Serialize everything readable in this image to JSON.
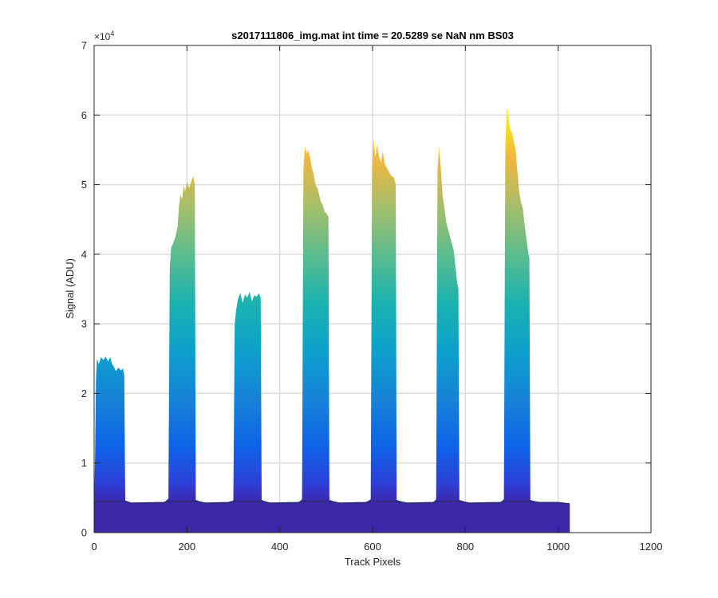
{
  "chart_data": {
    "type": "area",
    "title": "s2017111806_img.mat int time = 20.5289 se  NaN nm BS03",
    "xlabel": "Track Pixels",
    "ylabel": "Signal (ADU)",
    "xlim": [
      0,
      1200
    ],
    "ylim": [
      0,
      70000
    ],
    "xticks": [
      0,
      200,
      400,
      600,
      800,
      1000,
      1200
    ],
    "xtick_labels": [
      "0",
      "200",
      "400",
      "600",
      "800",
      "1000",
      "1200"
    ],
    "yticks": [
      0,
      10000,
      20000,
      30000,
      40000,
      50000,
      60000,
      70000
    ],
    "ytick_labels": [
      "0",
      "1",
      "2",
      "3",
      "4",
      "5",
      "6",
      "7"
    ],
    "y_exponent_label": "×10",
    "y_exponent_power": "4",
    "grid": true,
    "baseline": 4200,
    "colormap_low": "#3e26a8",
    "colormap_high": "#f9fb0e",
    "outline": [
      [
        0,
        4200
      ],
      [
        2,
        11000
      ],
      [
        4,
        22000
      ],
      [
        6,
        25000
      ],
      [
        10,
        24200
      ],
      [
        15,
        25200
      ],
      [
        20,
        24800
      ],
      [
        25,
        25300
      ],
      [
        30,
        24600
      ],
      [
        35,
        25200
      ],
      [
        38,
        24300
      ],
      [
        42,
        23900
      ],
      [
        47,
        23200
      ],
      [
        52,
        23700
      ],
      [
        58,
        23300
      ],
      [
        62,
        23600
      ],
      [
        65,
        22500
      ],
      [
        67,
        4500
      ],
      [
        80,
        4200
      ],
      [
        150,
        4300
      ],
      [
        160,
        4900
      ],
      [
        163,
        38000
      ],
      [
        166,
        41000
      ],
      [
        170,
        41500
      ],
      [
        175,
        42500
      ],
      [
        180,
        44000
      ],
      [
        183,
        47000
      ],
      [
        186,
        48500
      ],
      [
        190,
        48000
      ],
      [
        193,
        50000
      ],
      [
        196,
        49000
      ],
      [
        200,
        50400
      ],
      [
        205,
        49500
      ],
      [
        210,
        50600
      ],
      [
        214,
        51200
      ],
      [
        217,
        50000
      ],
      [
        219,
        4700
      ],
      [
        240,
        4200
      ],
      [
        290,
        4300
      ],
      [
        300,
        4600
      ],
      [
        303,
        30000
      ],
      [
        306,
        32000
      ],
      [
        310,
        33500
      ],
      [
        315,
        34500
      ],
      [
        320,
        33000
      ],
      [
        325,
        34200
      ],
      [
        330,
        33800
      ],
      [
        335,
        34600
      ],
      [
        340,
        33200
      ],
      [
        345,
        34100
      ],
      [
        350,
        33900
      ],
      [
        355,
        34400
      ],
      [
        359,
        33700
      ],
      [
        361,
        4700
      ],
      [
        380,
        4200
      ],
      [
        440,
        4300
      ],
      [
        448,
        4800
      ],
      [
        451,
        52000
      ],
      [
        454,
        55500
      ],
      [
        458,
        54500
      ],
      [
        461,
        55000
      ],
      [
        465,
        54000
      ],
      [
        469,
        52500
      ],
      [
        473,
        51500
      ],
      [
        477,
        50000
      ],
      [
        481,
        49500
      ],
      [
        485,
        48500
      ],
      [
        489,
        47500
      ],
      [
        493,
        47000
      ],
      [
        497,
        46000
      ],
      [
        500,
        46000
      ],
      [
        503,
        45500
      ],
      [
        505,
        45500
      ],
      [
        507,
        4700
      ],
      [
        530,
        4200
      ],
      [
        585,
        4300
      ],
      [
        596,
        4800
      ],
      [
        599,
        52500
      ],
      [
        602,
        56500
      ],
      [
        606,
        54000
      ],
      [
        610,
        55800
      ],
      [
        614,
        54000
      ],
      [
        618,
        53200
      ],
      [
        622,
        54800
      ],
      [
        626,
        53000
      ],
      [
        630,
        52500
      ],
      [
        634,
        52000
      ],
      [
        638,
        51500
      ],
      [
        642,
        51200
      ],
      [
        646,
        51000
      ],
      [
        650,
        50000
      ],
      [
        652,
        4700
      ],
      [
        675,
        4200
      ],
      [
        730,
        4300
      ],
      [
        737,
        4800
      ],
      [
        740,
        52000
      ],
      [
        743,
        55500
      ],
      [
        747,
        52500
      ],
      [
        751,
        48500
      ],
      [
        755,
        46500
      ],
      [
        759,
        44500
      ],
      [
        763,
        43500
      ],
      [
        767,
        42500
      ],
      [
        771,
        41500
      ],
      [
        775,
        40500
      ],
      [
        779,
        38000
      ],
      [
        782,
        36000
      ],
      [
        785,
        35000
      ],
      [
        787,
        4700
      ],
      [
        810,
        4200
      ],
      [
        875,
        4300
      ],
      [
        883,
        4800
      ],
      [
        886,
        55000
      ],
      [
        889,
        61000
      ],
      [
        892,
        60500
      ],
      [
        896,
        58000
      ],
      [
        900,
        57500
      ],
      [
        904,
        56500
      ],
      [
        908,
        55000
      ],
      [
        912,
        52000
      ],
      [
        916,
        49000
      ],
      [
        920,
        47500
      ],
      [
        924,
        46500
      ],
      [
        928,
        44000
      ],
      [
        932,
        42000
      ],
      [
        936,
        40000
      ],
      [
        938,
        39500
      ],
      [
        940,
        4700
      ],
      [
        960,
        4300
      ],
      [
        1000,
        4300
      ],
      [
        1025,
        4100
      ]
    ]
  }
}
